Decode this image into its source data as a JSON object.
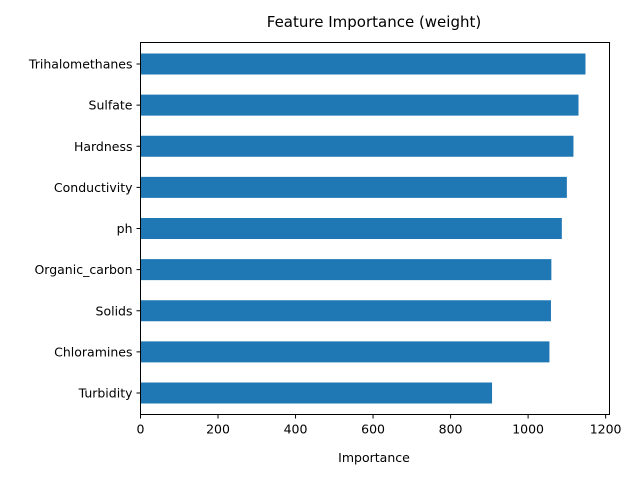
{
  "chart_data": {
    "type": "bar",
    "orientation": "horizontal",
    "title": "Feature Importance (weight)",
    "xlabel": "Importance",
    "ylabel": "",
    "categories": [
      "Trihalomethanes",
      "Sulfate",
      "Hardness",
      "Conductivity",
      "ph",
      "Organic_carbon",
      "Solids",
      "Chloramines",
      "Turbidity"
    ],
    "values": [
      1148,
      1130,
      1117,
      1100,
      1087,
      1060,
      1059,
      1055,
      907
    ],
    "xlim": [
      0,
      1210
    ],
    "xticks": [
      0,
      200,
      400,
      600,
      800,
      1000,
      1200
    ],
    "xtick_labels": [
      "0",
      "200",
      "400",
      "600",
      "800",
      "1000",
      "1200"
    ],
    "grid": false,
    "legend": "none",
    "bar_color": "#1f77b4"
  }
}
